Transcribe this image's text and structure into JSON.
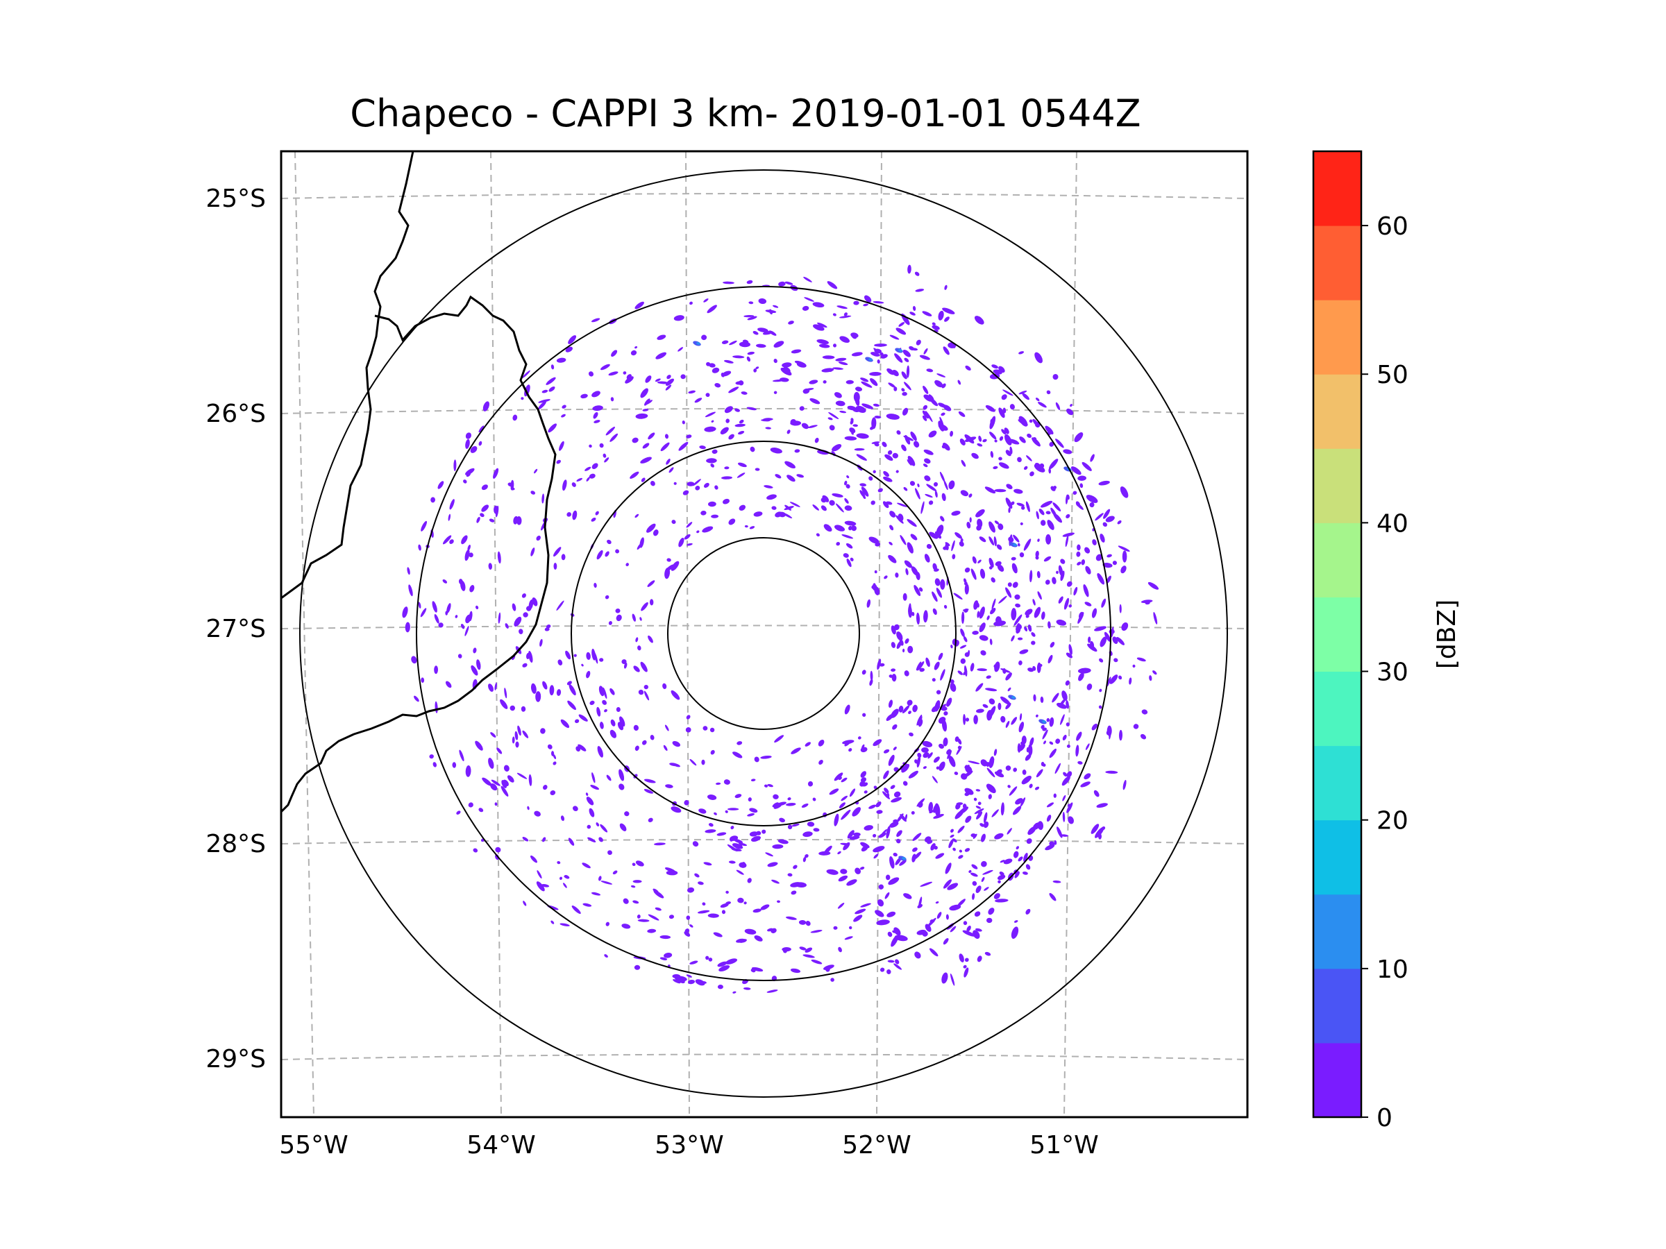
{
  "title": "Chapeco - CAPPI 3 km- 2019-01-01 0544Z",
  "map": {
    "lat_labels": [
      "25°S",
      "26°S",
      "27°S",
      "28°S",
      "29°S"
    ],
    "lon_labels": [
      "55°W",
      "54°W",
      "53°W",
      "52°W",
      "51°W"
    ],
    "gridline_color": "#b0b0b0",
    "range_ring_color": "#000000",
    "border_color": "#000000"
  },
  "colorbar": {
    "label": "[dBZ]",
    "tick_labels": [
      "0",
      "10",
      "20",
      "30",
      "40",
      "50",
      "60"
    ],
    "bounds": [
      0,
      5,
      10,
      15,
      20,
      25,
      30,
      35,
      40,
      45,
      50,
      55,
      60,
      65
    ],
    "colors": [
      "#7a1cff",
      "#4a55f5",
      "#2b8ef0",
      "#0fbfe6",
      "#2ee0d4",
      "#4df5bf",
      "#7dffa6",
      "#a5f58c",
      "#c9e07a",
      "#f2c06a",
      "#ff9a4d",
      "#ff5e33",
      "#ff2417"
    ]
  },
  "echo_colors": {
    "weak": "#7a1cff",
    "moderate": "#4a55f5",
    "strong": "#2b8ef0"
  }
}
